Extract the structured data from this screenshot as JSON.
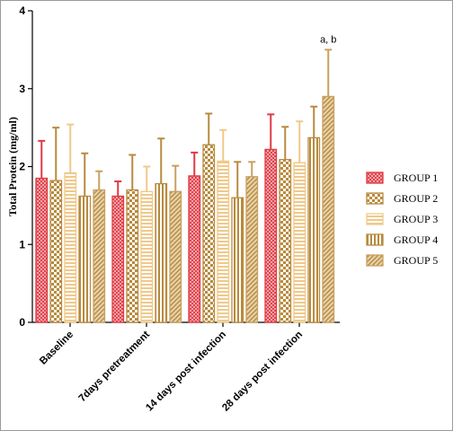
{
  "chart_data": {
    "type": "bar",
    "title": "",
    "xlabel": "",
    "ylabel": "Total Protein (mg/ml)",
    "ylim": [
      0,
      4
    ],
    "yticks": [
      "0",
      "1",
      "2",
      "3",
      "4"
    ],
    "categories": [
      "Baseline",
      "7days pretreatment",
      "14 days post infection",
      "28 days post infection"
    ],
    "legend_position": "right",
    "grid": false,
    "series": [
      {
        "name": "GROUP 1",
        "color": "#e03a44",
        "pattern": "crosshatch",
        "values": [
          1.85,
          1.62,
          1.88,
          2.22
        ],
        "errors": [
          0.48,
          0.19,
          0.3,
          0.45
        ]
      },
      {
        "name": "GROUP 2",
        "color": "#b88a3e",
        "pattern": "checker",
        "values": [
          1.82,
          1.7,
          2.28,
          2.09
        ],
        "errors": [
          0.68,
          0.45,
          0.4,
          0.42
        ]
      },
      {
        "name": "GROUP 3",
        "color": "#f0c98a",
        "pattern": "hstripe",
        "values": [
          1.92,
          1.68,
          2.07,
          2.05
        ],
        "errors": [
          0.62,
          0.32,
          0.4,
          0.53
        ]
      },
      {
        "name": "GROUP 4",
        "color": "#b88a3e",
        "pattern": "vstripe",
        "values": [
          1.62,
          1.78,
          1.6,
          2.37
        ],
        "errors": [
          0.55,
          0.58,
          0.46,
          0.4
        ]
      },
      {
        "name": "GROUP 5",
        "color": "#c9a060",
        "pattern": "diag",
        "values": [
          1.7,
          1.68,
          1.87,
          2.9
        ],
        "errors": [
          0.24,
          0.33,
          0.19,
          0.6
        ]
      }
    ],
    "annotations": [
      {
        "category": "28 days post infection",
        "series": "GROUP 5",
        "text": "a, b"
      }
    ]
  }
}
